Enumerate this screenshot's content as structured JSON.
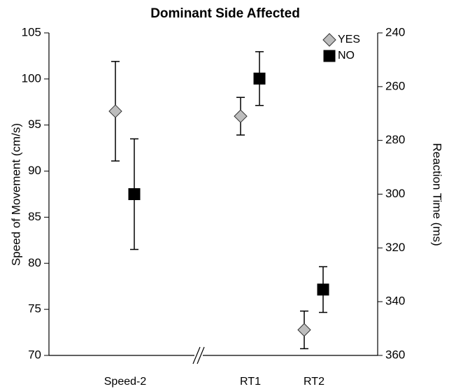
{
  "chart_data": {
    "type": "errorbar",
    "title": "Dominant Side Affected",
    "ylabel": "Speed of Movement (cm/s)",
    "y2label": "Reaction Time (ms)",
    "categories": [
      "Speed-2",
      "RT1",
      "RT2"
    ],
    "category_axis": [
      "y",
      "y2",
      "y2"
    ],
    "ylim": [
      70,
      105
    ],
    "yticks": [
      70,
      75,
      80,
      85,
      90,
      95,
      100,
      105
    ],
    "y2lim": [
      360,
      240
    ],
    "y2ticks": [
      240,
      260,
      280,
      300,
      320,
      340,
      360
    ],
    "legend": "upper right",
    "series": [
      {
        "name": "YES",
        "marker": "diamond",
        "color": "#bdbdbd",
        "values": [
          96.5,
          271,
          350.5
        ],
        "errors": [
          5.4,
          7,
          7
        ]
      },
      {
        "name": "NO",
        "marker": "square",
        "color": "#000000",
        "values": [
          87.5,
          257,
          335.5
        ],
        "errors": [
          6,
          10,
          8.5
        ]
      }
    ]
  }
}
